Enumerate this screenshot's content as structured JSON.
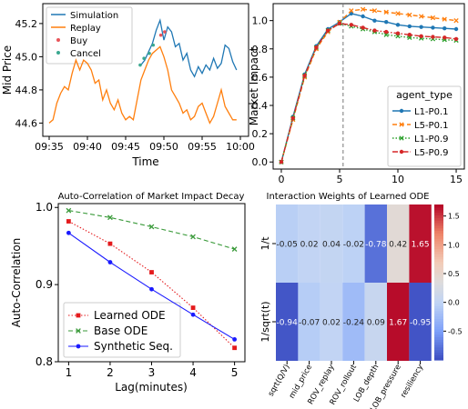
{
  "chart_data": [
    {
      "type": "line",
      "xlabel": "Time",
      "ylabel": "Mid Price",
      "x_ticks": [
        "09:35",
        "09:40",
        "09:45",
        "09:50",
        "09:55",
        "10:00"
      ],
      "y_ticks": [
        "44.6",
        "44.8",
        "45.0",
        "45.2"
      ],
      "ylim": [
        44.52,
        45.32
      ],
      "x_range_minutes": [
        0,
        25
      ],
      "grid": false,
      "legend_position": "top-left",
      "series": [
        {
          "name": "Simulation",
          "color": "#1f77b4",
          "kind": "line",
          "x": [
            12.0,
            12.5,
            13.0,
            13.5,
            14.0,
            14.5,
            15.0,
            15.5,
            16.0,
            16.5,
            17.0,
            17.5,
            18.0,
            18.5,
            19.0,
            19.5,
            20.0,
            20.5,
            21.0,
            21.5,
            22.0,
            22.5,
            23.0,
            23.5,
            24.0,
            24.5
          ],
          "y": [
            44.95,
            44.98,
            45.03,
            45.08,
            45.16,
            45.22,
            45.1,
            45.18,
            45.15,
            45.06,
            45.08,
            44.98,
            45.02,
            44.92,
            44.88,
            44.94,
            44.9,
            44.95,
            44.92,
            44.99,
            44.93,
            44.96,
            45.07,
            45.05,
            44.97,
            44.92
          ]
        },
        {
          "name": "Replay",
          "color": "#ff7f0e",
          "kind": "line",
          "x": [
            0.0,
            0.5,
            1.0,
            1.5,
            2.0,
            2.5,
            3.0,
            3.5,
            4.0,
            4.5,
            5.0,
            5.5,
            6.0,
            6.5,
            7.0,
            7.5,
            8.0,
            8.5,
            9.0,
            9.5,
            10.0,
            10.5,
            11.0,
            11.5,
            12.0,
            12.5,
            13.0,
            13.5,
            14.0,
            14.5,
            15.0,
            15.5,
            16.0,
            16.5,
            17.0,
            17.5,
            18.0,
            18.5,
            19.0,
            19.5,
            20.0,
            20.5,
            21.0,
            21.5,
            22.0,
            22.5,
            23.0,
            23.5,
            24.0,
            24.5
          ],
          "y": [
            44.6,
            44.62,
            44.72,
            44.78,
            44.82,
            44.8,
            44.9,
            44.98,
            44.92,
            44.98,
            44.96,
            44.92,
            44.84,
            44.86,
            44.74,
            44.8,
            44.72,
            44.68,
            44.74,
            44.66,
            44.62,
            44.64,
            44.62,
            44.74,
            44.86,
            44.92,
            44.98,
            45.02,
            45.04,
            45.06,
            45.0,
            44.92,
            44.8,
            44.76,
            44.72,
            44.66,
            44.68,
            44.62,
            44.64,
            44.7,
            44.72,
            44.66,
            44.6,
            44.64,
            44.72,
            44.8,
            44.7,
            44.66,
            44.62,
            44.62
          ]
        },
        {
          "name": "Buy",
          "color": "#e8555a",
          "kind": "scatter",
          "x": [
            14.6,
            15.1
          ],
          "y": [
            45.13,
            45.15
          ]
        },
        {
          "name": "Cancel",
          "color": "#3aa890",
          "kind": "scatter",
          "x": [
            11.9,
            12.4,
            13.1,
            13.6
          ],
          "y": [
            44.95,
            44.99,
            45.02,
            45.07
          ]
        }
      ]
    },
    {
      "type": "line",
      "xlabel": "",
      "ylabel": "Market Impact",
      "xlim": [
        -0.7,
        15.7
      ],
      "ylim": [
        -0.05,
        1.12
      ],
      "x_ticks": [
        0,
        5,
        10,
        15
      ],
      "y_ticks": [
        "0.0",
        "0.2",
        "0.4",
        "0.6",
        "0.8",
        "1.0"
      ],
      "vertical_line_x": 5.3,
      "grid": false,
      "legend_title": "agent_type",
      "legend_position": "center-right",
      "x": [
        0,
        1,
        2,
        3,
        4,
        5,
        6,
        7,
        8,
        9,
        10,
        11,
        12,
        13,
        14,
        15
      ],
      "series": [
        {
          "name": "L1-P0.1",
          "color": "#1f77b4",
          "marker": "circle",
          "style": "solid",
          "values": [
            0.0,
            0.32,
            0.62,
            0.82,
            0.94,
            0.99,
            1.05,
            1.03,
            1.0,
            0.99,
            0.97,
            0.96,
            0.955,
            0.95,
            0.945,
            0.94
          ]
        },
        {
          "name": "L5-P0.1",
          "color": "#ff7f0e",
          "marker": "x",
          "style": "dashed",
          "values": [
            0.0,
            0.3,
            0.6,
            0.8,
            0.92,
            0.99,
            1.07,
            1.08,
            1.07,
            1.06,
            1.05,
            1.04,
            1.03,
            1.02,
            1.01,
            1.0
          ]
        },
        {
          "name": "L1-P0.9",
          "color": "#2ca02c",
          "marker": "x",
          "style": "dotted",
          "values": [
            0.0,
            0.31,
            0.61,
            0.81,
            0.93,
            0.98,
            0.96,
            0.94,
            0.92,
            0.9,
            0.89,
            0.88,
            0.875,
            0.87,
            0.865,
            0.86
          ]
        },
        {
          "name": "L5-P0.9",
          "color": "#d62728",
          "marker": "circle",
          "style": "dashdot",
          "values": [
            0.0,
            0.31,
            0.61,
            0.81,
            0.93,
            0.98,
            0.97,
            0.95,
            0.93,
            0.92,
            0.91,
            0.9,
            0.89,
            0.885,
            0.88,
            0.87
          ]
        }
      ]
    },
    {
      "type": "line",
      "title": "Auto-Correlation of Market Impact Decay",
      "xlabel": "Lag(minutes)",
      "ylabel": "Auto-Correlation",
      "xlim": [
        0.75,
        5.25
      ],
      "ylim": [
        0.8,
        1.005
      ],
      "x_ticks": [
        1,
        2,
        3,
        4,
        5
      ],
      "y_ticks": [
        "0.8",
        "0.9",
        "1.0"
      ],
      "grid": false,
      "legend_position": "lower-left",
      "x": [
        1,
        2,
        3,
        4,
        5
      ],
      "series": [
        {
          "name": "Learned ODE",
          "color": "#e41a1c",
          "marker": "square",
          "style": "dotted",
          "values": [
            0.982,
            0.953,
            0.916,
            0.87,
            0.818
          ]
        },
        {
          "name": "Base ODE",
          "color": "#3a9a3a",
          "marker": "x",
          "style": "dashed",
          "values": [
            0.996,
            0.987,
            0.975,
            0.962,
            0.946
          ]
        },
        {
          "name": "Synthetic Seq.",
          "color": "#1a1aff",
          "marker": "circle",
          "style": "solid",
          "values": [
            0.967,
            0.929,
            0.894,
            0.861,
            0.829
          ]
        }
      ]
    },
    {
      "type": "heatmap",
      "title": "Interaction Weights of Learned ODE",
      "rows": [
        "1/t",
        "1/sqrt(t)"
      ],
      "columns": [
        "sqrt(Q/V)",
        "mid_price",
        "ROV_replay",
        "ROV_rollout",
        "LOB_depth",
        "LOB_pressure",
        "resiliency"
      ],
      "values": [
        [
          -0.05,
          0.02,
          0.04,
          -0.02,
          -0.78,
          0.42,
          1.65
        ],
        [
          -0.94,
          -0.07,
          0.02,
          -0.24,
          0.09,
          1.67,
          -0.95
        ]
      ],
      "labels": [
        [
          "-0.05",
          "0.02",
          "0.04",
          "-0.02",
          "-0.78",
          "0.42",
          "1.65"
        ],
        [
          "-0.94",
          "-0.07",
          "0.02",
          "-0.24",
          "0.09",
          "1.67",
          "-0.95"
        ]
      ],
      "colormap": "coolwarm",
      "vmin": -1.0,
      "vmax": 1.7,
      "colorbar_ticks": [
        "-0.5",
        "0.0",
        "0.5",
        "1.0",
        "1.5"
      ]
    }
  ]
}
